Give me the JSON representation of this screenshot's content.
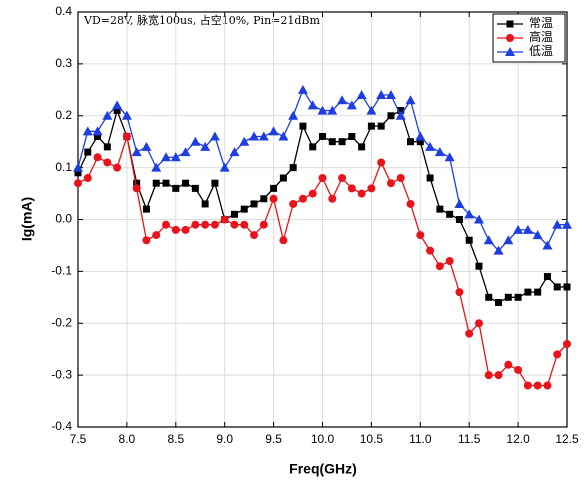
{
  "chart_data": {
    "type": "line",
    "xlabel": "Freq(GHz)",
    "ylabel": "Ig(mA)",
    "annotation": "VD=28V, 脉宽100us, 占空10%, Pin=21dBm",
    "x": [
      7.5,
      7.6,
      7.7,
      7.8,
      7.9,
      8.0,
      8.1,
      8.2,
      8.3,
      8.4,
      8.5,
      8.6,
      8.7,
      8.8,
      8.9,
      9.0,
      9.1,
      9.2,
      9.3,
      9.4,
      9.5,
      9.6,
      9.7,
      9.8,
      9.9,
      10.0,
      10.1,
      10.2,
      10.3,
      10.4,
      10.5,
      10.6,
      10.7,
      10.8,
      10.9,
      11.0,
      11.1,
      11.2,
      11.3,
      11.4,
      11.5,
      11.6,
      11.7,
      11.8,
      11.9,
      12.0,
      12.1,
      12.2,
      12.3,
      12.4,
      12.5
    ],
    "series": [
      {
        "name": "常温",
        "color": "#000000",
        "marker": "square",
        "values": [
          0.09,
          0.13,
          0.16,
          0.14,
          0.21,
          0.16,
          0.07,
          0.02,
          0.07,
          0.07,
          0.06,
          0.07,
          0.06,
          0.03,
          0.07,
          0.0,
          0.01,
          0.02,
          0.03,
          0.04,
          0.06,
          0.08,
          0.1,
          0.18,
          0.14,
          0.16,
          0.15,
          0.15,
          0.16,
          0.14,
          0.18,
          0.18,
          0.2,
          0.21,
          0.15,
          0.15,
          0.08,
          0.02,
          0.01,
          0.0,
          -0.04,
          -0.09,
          -0.15,
          -0.16,
          -0.15,
          -0.15,
          -0.14,
          -0.14,
          -0.11,
          -0.13,
          -0.13
        ]
      },
      {
        "name": "高温",
        "color": "#e8141b",
        "marker": "circle",
        "values": [
          0.07,
          0.08,
          0.12,
          0.11,
          0.1,
          0.16,
          0.06,
          -0.04,
          -0.03,
          -0.01,
          -0.02,
          -0.02,
          -0.01,
          -0.01,
          -0.01,
          0.0,
          -0.01,
          -0.01,
          -0.03,
          -0.01,
          0.04,
          -0.04,
          0.03,
          0.04,
          0.05,
          0.08,
          0.04,
          0.08,
          0.06,
          0.05,
          0.06,
          0.11,
          0.07,
          0.08,
          0.03,
          -0.03,
          -0.06,
          -0.09,
          -0.08,
          -0.14,
          -0.22,
          -0.2,
          -0.3,
          -0.3,
          -0.28,
          -0.29,
          -0.32,
          -0.32,
          -0.32,
          -0.26,
          -0.24
        ]
      },
      {
        "name": "低温",
        "color": "#1f3ee0",
        "marker": "triangle",
        "values": [
          0.1,
          0.17,
          0.17,
          0.2,
          0.22,
          0.2,
          0.13,
          0.14,
          0.1,
          0.12,
          0.12,
          0.13,
          0.15,
          0.14,
          0.16,
          0.1,
          0.13,
          0.15,
          0.16,
          0.16,
          0.17,
          0.16,
          0.2,
          0.25,
          0.22,
          0.21,
          0.21,
          0.23,
          0.22,
          0.24,
          0.21,
          0.24,
          0.24,
          0.2,
          0.23,
          0.16,
          0.14,
          0.13,
          0.12,
          0.03,
          0.01,
          0.0,
          -0.04,
          -0.06,
          -0.04,
          -0.02,
          -0.02,
          -0.03,
          -0.05,
          -0.01,
          -0.01
        ]
      }
    ],
    "xlim": [
      7.5,
      12.5
    ],
    "xticks": [
      7.5,
      {
        "value": 8,
        "label": "8.0"
      },
      8.5,
      {
        "value": 9,
        "label": "9.0"
      },
      9.5,
      {
        "value": 10,
        "label": "10.0"
      },
      10.5,
      {
        "value": 11,
        "label": "11.0"
      },
      11.5,
      {
        "value": 12,
        "label": "12.0"
      },
      12.5
    ],
    "ylim": [
      -0.4,
      0.4
    ],
    "yticks": [
      -0.4,
      -0.3,
      -0.2,
      -0.1,
      {
        "value": 0,
        "label": "0.0"
      },
      0.1,
      0.2,
      0.3,
      0.4
    ],
    "grid": true,
    "legend": "upper right"
  }
}
